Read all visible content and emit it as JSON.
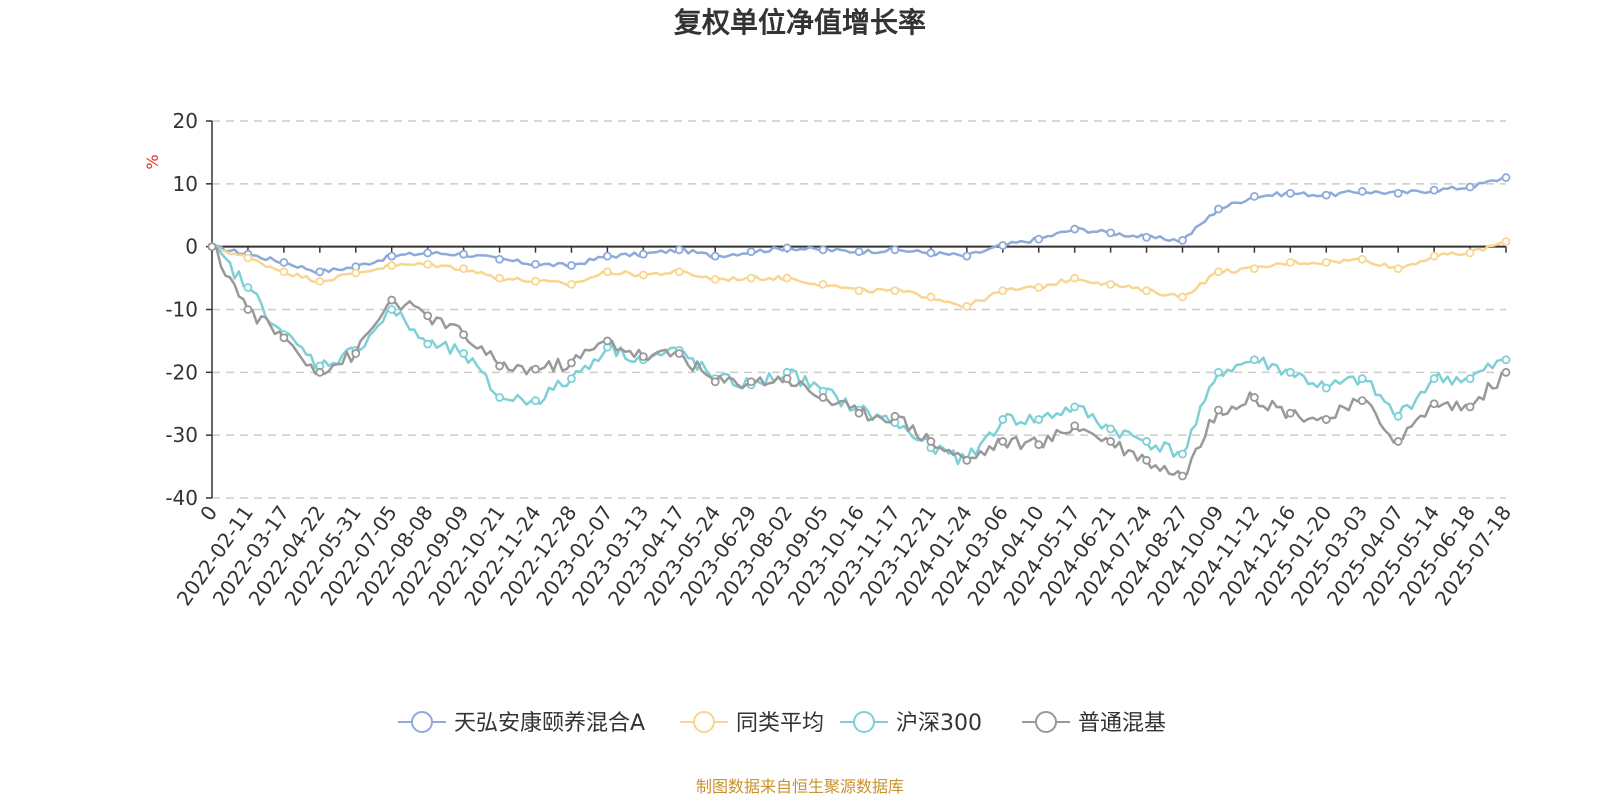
{
  "chart_data": {
    "type": "line",
    "title": "复权单位净值增长率",
    "ylabel": "%",
    "ylim": [
      -40,
      20
    ],
    "yticks": [
      20,
      10,
      0,
      -10,
      -20,
      -30,
      -40
    ],
    "grid": true,
    "legend_position": "bottom",
    "x_labels": [
      "0",
      "2022-02-11",
      "2022-03-17",
      "2022-04-22",
      "2022-05-31",
      "2022-07-05",
      "2022-08-08",
      "2022-09-09",
      "2022-10-21",
      "2022-11-24",
      "2022-12-28",
      "2023-02-07",
      "2023-03-13",
      "2023-04-17",
      "2023-05-24",
      "2023-06-29",
      "2023-08-02",
      "2023-09-05",
      "2023-10-16",
      "2023-11-17",
      "2023-12-21",
      "2024-01-24",
      "2024-03-06",
      "2024-04-10",
      "2024-05-17",
      "2024-06-21",
      "2024-07-24",
      "2024-08-27",
      "2024-10-09",
      "2024-11-12",
      "2024-12-16",
      "2025-01-20",
      "2025-03-03",
      "2025-04-07",
      "2025-05-14",
      "2025-06-18",
      "2025-07-18"
    ],
    "series": [
      {
        "name": "天弘安康颐养混合A",
        "color": "#8eaadb",
        "values": [
          0,
          -1.2,
          -2.5,
          -4.0,
          -3.2,
          -1.5,
          -1.0,
          -1.2,
          -2.0,
          -2.8,
          -3.0,
          -1.5,
          -1.2,
          -0.5,
          -1.5,
          -0.8,
          -0.2,
          -0.5,
          -0.8,
          -0.5,
          -1.0,
          -1.5,
          0.2,
          1.2,
          2.8,
          2.2,
          1.5,
          1.0,
          6.0,
          8.0,
          8.5,
          8.2,
          8.8,
          8.5,
          9.0,
          9.5,
          11.0
        ]
      },
      {
        "name": "同类平均",
        "color": "#f9d690",
        "values": [
          0,
          -1.8,
          -4.0,
          -5.5,
          -4.2,
          -3.0,
          -2.8,
          -3.5,
          -5.0,
          -5.5,
          -6.0,
          -4.0,
          -4.5,
          -4.0,
          -5.2,
          -5.0,
          -5.0,
          -6.0,
          -7.0,
          -7.0,
          -8.0,
          -9.5,
          -7.0,
          -6.5,
          -5.0,
          -6.0,
          -7.0,
          -8.0,
          -4.0,
          -3.5,
          -2.5,
          -2.5,
          -2.0,
          -3.5,
          -1.5,
          -1.0,
          0.8
        ]
      },
      {
        "name": "沪深300",
        "color": "#7dd0d6",
        "values": [
          0,
          -6.5,
          -14.0,
          -19.0,
          -16.5,
          -10.0,
          -15.5,
          -17.0,
          -24.0,
          -24.5,
          -21.0,
          -16.0,
          -18.0,
          -16.5,
          -21.0,
          -22.0,
          -20.0,
          -23.0,
          -26.0,
          -28.0,
          -32.0,
          -34.0,
          -27.5,
          -27.5,
          -25.5,
          -29.0,
          -31.0,
          -33.0,
          -20.0,
          -18.0,
          -20.0,
          -22.5,
          -21.0,
          -27.0,
          -21.0,
          -21.0,
          -18.0
        ]
      },
      {
        "name": "普通混基",
        "color": "#999999",
        "values": [
          0,
          -10.0,
          -14.5,
          -20.0,
          -17.0,
          -8.5,
          -11.0,
          -14.0,
          -19.0,
          -19.5,
          -18.5,
          -15.0,
          -17.5,
          -17.0,
          -21.5,
          -21.5,
          -21.0,
          -24.0,
          -26.5,
          -27.0,
          -31.0,
          -34.0,
          -31.0,
          -31.5,
          -28.5,
          -31.0,
          -34.0,
          -36.5,
          -26.0,
          -24.0,
          -26.5,
          -27.5,
          -24.5,
          -31.0,
          -25.0,
          -25.5,
          -20.0
        ]
      }
    ]
  },
  "source_note": "制图数据来自恒生聚源数据库"
}
